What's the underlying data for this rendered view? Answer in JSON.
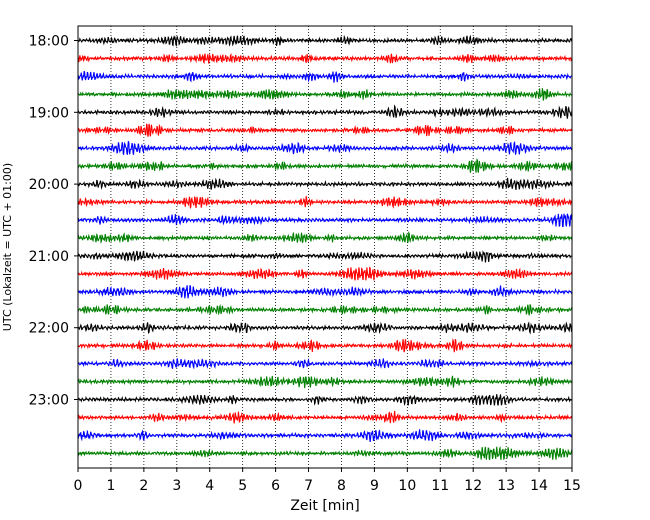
{
  "chart_data": {
    "type": "line",
    "title": "",
    "xlabel": "Zeit  [min]",
    "ylabel": "UTC (Lokalzeit = UTC + 01:00)",
    "xlim": [
      0,
      15
    ],
    "x_ticks": [
      "0",
      "1",
      "2",
      "3",
      "4",
      "5",
      "6",
      "7",
      "8",
      "9",
      "10",
      "11",
      "12",
      "13",
      "14",
      "15"
    ],
    "y_tick_labels": [
      "18:00",
      "19:00",
      "20:00",
      "21:00",
      "22:00",
      "23:00"
    ],
    "grid": "vertical dotted at each minute",
    "legend": "none",
    "trace_colors": [
      "#000000",
      "#ff0000",
      "#0000ff",
      "#008000"
    ],
    "traces": [
      {
        "start": "18:00",
        "color": "#000000"
      },
      {
        "start": "18:15",
        "color": "#ff0000"
      },
      {
        "start": "18:30",
        "color": "#0000ff"
      },
      {
        "start": "18:45",
        "color": "#008000"
      },
      {
        "start": "19:00",
        "color": "#000000"
      },
      {
        "start": "19:15",
        "color": "#ff0000"
      },
      {
        "start": "19:30",
        "color": "#0000ff"
      },
      {
        "start": "19:45",
        "color": "#008000"
      },
      {
        "start": "20:00",
        "color": "#000000"
      },
      {
        "start": "20:15",
        "color": "#ff0000"
      },
      {
        "start": "20:30",
        "color": "#0000ff"
      },
      {
        "start": "20:45",
        "color": "#008000"
      },
      {
        "start": "21:00",
        "color": "#000000"
      },
      {
        "start": "21:15",
        "color": "#ff0000"
      },
      {
        "start": "21:30",
        "color": "#0000ff"
      },
      {
        "start": "21:45",
        "color": "#008000"
      },
      {
        "start": "22:00",
        "color": "#000000"
      },
      {
        "start": "22:15",
        "color": "#ff0000"
      },
      {
        "start": "22:30",
        "color": "#0000ff"
      },
      {
        "start": "22:45",
        "color": "#008000"
      },
      {
        "start": "23:00",
        "color": "#000000"
      },
      {
        "start": "23:15",
        "color": "#ff0000"
      },
      {
        "start": "23:30",
        "color": "#0000ff"
      },
      {
        "start": "23:45",
        "color": "#008000"
      }
    ]
  }
}
